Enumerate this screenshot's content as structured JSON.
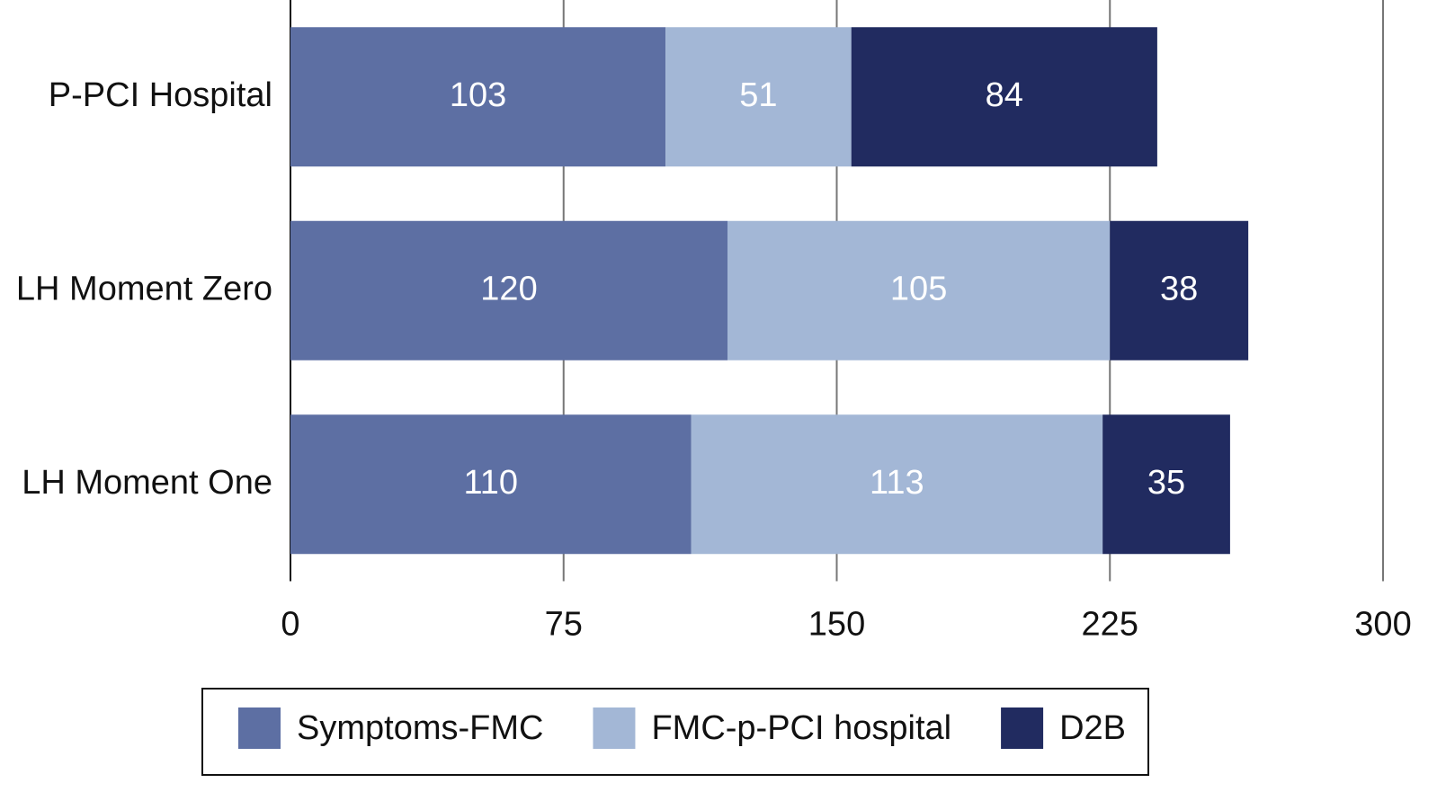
{
  "chart_data": {
    "type": "stacked-bar-horizontal",
    "categories": [
      "P-PCI Hospital",
      "LH Moment Zero",
      "LH Moment One"
    ],
    "series": [
      {
        "name": "Symptoms-FMC",
        "color": "#5d6fa3",
        "values": [
          103,
          120,
          110
        ]
      },
      {
        "name": "FMC-p-PCI hospital",
        "color": "#a3b7d6",
        "values": [
          51,
          105,
          113
        ]
      },
      {
        "name": "D2B",
        "color": "#212b60",
        "values": [
          84,
          38,
          35
        ]
      }
    ],
    "xlim": [
      0,
      300
    ],
    "xticks": [
      0,
      75,
      150,
      225,
      300
    ],
    "grid": true,
    "legend": "bottom"
  }
}
